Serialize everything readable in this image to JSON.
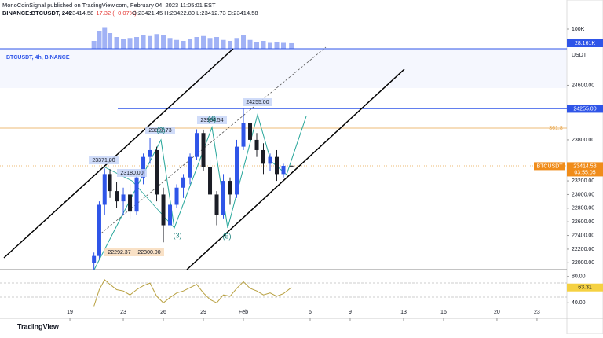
{
  "header": {
    "publisher": "MonoCoinSignal published on TradingView.com, February 04, 2023 11:05:01 EST",
    "symbol": "BINANCE:BTCUSDT, 240",
    "last": "23414.58",
    "change": "−17.32 (−0.07%)",
    "ohlc": "O:23421.45 H:23422.80 L:23412.73 C:23414.58"
  },
  "footer": {
    "logo": "TradingView"
  },
  "chart_data": {
    "type": "candlestick",
    "title": "BTCUSDT, 4h, BINANCE",
    "unit": "USDT",
    "up_color": "#2f55e8",
    "down_color": "#1b1d26",
    "x": [
      20.8,
      21.2,
      21.6,
      22.0,
      22.5,
      23.0,
      23.5,
      24.0,
      24.5,
      25.0,
      25.5,
      26.0,
      26.5,
      27.0,
      27.5,
      28.0,
      28.5,
      29.0,
      29.5,
      30.0,
      30.5,
      31.0,
      31.5,
      32.0,
      32.5,
      33.0,
      33.5,
      34.0,
      34.5,
      35.0,
      35.6
    ],
    "open": [
      22000,
      22100,
      22850,
      23300,
      23050,
      22900,
      23000,
      22750,
      23250,
      23550,
      23650,
      23000,
      22550,
      22850,
      23100,
      23250,
      23550,
      23900,
      23400,
      23000,
      22700,
      23200,
      23000,
      23700,
      24050,
      23800,
      23650,
      23450,
      23550,
      23300,
      23421.45
    ],
    "high": [
      22150,
      22900,
      23380,
      23372,
      23180,
      23100,
      23150,
      23300,
      23600,
      23823,
      23700,
      23100,
      22900,
      23150,
      23300,
      23600,
      23955,
      23950,
      23500,
      23050,
      23300,
      23250,
      23800,
      24255,
      24150,
      23900,
      23750,
      23600,
      23650,
      23450,
      23422.8
    ],
    "low": [
      21900,
      22050,
      22700,
      22950,
      22800,
      22700,
      22650,
      22700,
      23150,
      23450,
      22900,
      22300,
      22500,
      22800,
      22950,
      23150,
      23500,
      23350,
      22900,
      22550,
      22650,
      22850,
      22950,
      23650,
      23700,
      23550,
      23300,
      23350,
      23200,
      23250,
      23412.73
    ],
    "close": [
      22100,
      22850,
      23300,
      23050,
      22900,
      23000,
      22750,
      23250,
      23550,
      23650,
      23000,
      22550,
      22850,
      23100,
      23250,
      23550,
      23900,
      23400,
      23000,
      22700,
      23200,
      23000,
      23700,
      24050,
      23800,
      23650,
      23450,
      23550,
      23300,
      23420,
      23414.58
    ],
    "ylim": [
      21900,
      25100
    ],
    "yticks": [
      {
        "value": 22000,
        "label": "22000.00"
      },
      {
        "value": 22200,
        "label": "22200.00"
      },
      {
        "value": 22400,
        "label": "22400.00"
      },
      {
        "value": 22600,
        "label": "22600.00"
      },
      {
        "value": 22800,
        "label": "22800.00"
      },
      {
        "value": 23000,
        "label": "23000.00"
      },
      {
        "value": 23200,
        "label": "23200.00"
      },
      {
        "value": 23800,
        "label": "23800.00"
      },
      {
        "value": 24600,
        "label": "24600.00"
      }
    ],
    "xlim": [
      13.76,
      56.24
    ],
    "xticks": [
      {
        "value": 19,
        "label": "19"
      },
      {
        "value": 23,
        "label": "23"
      },
      {
        "value": 26,
        "label": "26"
      },
      {
        "value": 29,
        "label": "29"
      },
      {
        "value": 32,
        "label": "Feb"
      },
      {
        "value": 37,
        "label": "6"
      },
      {
        "value": 40,
        "label": "9"
      },
      {
        "value": 44,
        "label": "13"
      },
      {
        "value": 47,
        "label": "16"
      },
      {
        "value": 51,
        "label": "20"
      },
      {
        "value": 54,
        "label": "23"
      }
    ],
    "price_label": {
      "symbol": "BTCUSDT",
      "value": 23414.58,
      "label": "23414.58",
      "countdown": "03:55:05"
    },
    "level_label": {
      "value": 24255,
      "label": "24255.00"
    },
    "annotations": [
      "23371.80",
      "23180.00",
      "23822.73",
      "23964.54",
      "24255.00",
      "22292.37",
      "22300.00",
      "(2)",
      "(4)",
      "(3)",
      "(5)",
      "361.8"
    ],
    "volume": {
      "color": "#2f55e8",
      "ylim": [
        0,
        128000
      ],
      "yticks": [
        {
          "value": 100000,
          "label": "100K"
        }
      ],
      "values": [
        40000,
        90000,
        110000,
        80000,
        60000,
        50000,
        55000,
        60000,
        70000,
        65000,
        75000,
        70000,
        55000,
        45000,
        40000,
        50000,
        60000,
        65000,
        55000,
        60000,
        45000,
        40000,
        55000,
        70000,
        45000,
        35000,
        40000,
        30000,
        35000,
        30000,
        28161
      ],
      "last_label": "28.161K"
    },
    "rsi": {
      "color": "#b8a040",
      "ylim": [
        16.5,
        90.4
      ],
      "yticks": [
        {
          "value": 80,
          "label": "80.00"
        },
        {
          "value": 40,
          "label": "40.00"
        }
      ],
      "values": [
        35,
        60,
        75,
        68,
        60,
        58,
        52,
        60,
        66,
        70,
        50,
        40,
        48,
        55,
        58,
        63,
        68,
        55,
        45,
        40,
        52,
        50,
        62,
        72,
        62,
        58,
        52,
        55,
        50,
        54,
        63.31
      ],
      "last_label": "63.31"
    }
  }
}
